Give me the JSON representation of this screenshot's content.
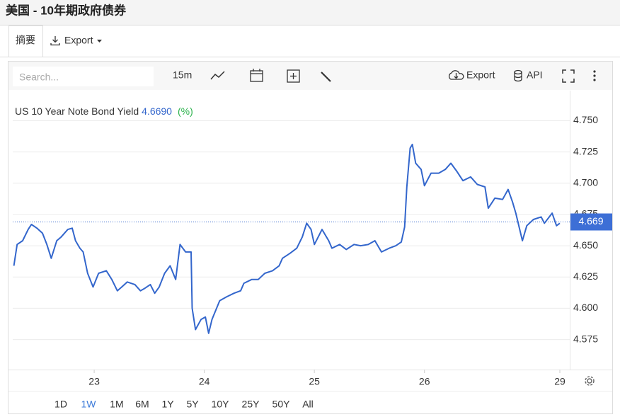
{
  "ui": {
    "title": "美国 - 10年期政府债券",
    "tabs": [
      "摘要",
      "Export"
    ],
    "search_placeholder": "Search...",
    "interval": "15m",
    "export": "Export",
    "api": "API",
    "ranges": [
      "1D",
      "1W",
      "1M",
      "6M",
      "1Y",
      "5Y",
      "10Y",
      "25Y",
      "50Y",
      "All"
    ],
    "active_range": 1
  },
  "chart_data": {
    "type": "line",
    "title": "US 10 Year Note Bond Yield",
    "unit_label": "(%)",
    "color": "#3366cc",
    "current": {
      "value": 4.669,
      "label": "4.669",
      "legend_label": "4.6690"
    },
    "x": [
      -0.73,
      -0.7,
      -0.65,
      -0.6,
      -0.57,
      -0.52,
      -0.47,
      -0.43,
      -0.39,
      -0.34,
      -0.3,
      -0.24,
      -0.2,
      -0.17,
      -0.13,
      -0.1,
      -0.06,
      -0.01,
      0.04,
      0.11,
      0.16,
      0.21,
      0.25,
      0.3,
      0.37,
      0.42,
      0.46,
      0.51,
      0.55,
      0.59,
      0.64,
      0.69,
      0.74,
      0.78,
      0.83,
      0.88,
      0.89,
      0.92,
      0.97,
      1.01,
      1.04,
      1.07,
      1.14,
      1.2,
      1.27,
      1.33,
      1.36,
      1.43,
      1.49,
      1.55,
      1.62,
      1.68,
      1.71,
      1.78,
      1.84,
      1.89,
      1.93,
      1.97,
      2.0,
      2.07,
      2.13,
      2.16,
      2.23,
      2.29,
      2.36,
      2.42,
      2.49,
      2.55,
      2.61,
      2.68,
      2.74,
      2.79,
      2.82,
      2.84,
      2.87,
      2.89,
      2.92,
      2.97,
      3.0,
      3.06,
      3.13,
      3.19,
      3.24,
      3.29,
      3.35,
      3.42,
      3.48,
      3.55,
      3.58,
      3.64,
      3.71,
      3.76,
      3.8,
      3.83,
      3.89,
      3.93,
      3.99,
      4.06,
      4.09,
      4.16,
      4.2,
      4.23
    ],
    "values": [
      4.634,
      4.651,
      4.654,
      4.663,
      4.667,
      4.664,
      4.66,
      4.651,
      4.64,
      4.654,
      4.657,
      4.663,
      4.664,
      4.654,
      4.648,
      4.645,
      4.628,
      4.617,
      4.628,
      4.63,
      4.623,
      4.614,
      4.617,
      4.621,
      4.619,
      4.614,
      4.616,
      4.619,
      4.612,
      4.617,
      4.628,
      4.634,
      4.623,
      4.651,
      4.645,
      4.645,
      4.6,
      4.583,
      4.591,
      4.593,
      4.58,
      4.591,
      4.606,
      4.609,
      4.612,
      4.614,
      4.62,
      4.623,
      4.623,
      4.628,
      4.63,
      4.634,
      4.64,
      4.644,
      4.648,
      4.657,
      4.668,
      4.663,
      4.651,
      4.663,
      4.654,
      4.648,
      4.651,
      4.647,
      4.651,
      4.65,
      4.651,
      4.654,
      4.645,
      4.648,
      4.65,
      4.653,
      4.665,
      4.697,
      4.728,
      4.731,
      4.716,
      4.711,
      4.698,
      4.708,
      4.708,
      4.711,
      4.716,
      4.71,
      4.702,
      4.705,
      4.699,
      4.697,
      4.68,
      4.688,
      4.687,
      4.695,
      4.685,
      4.676,
      4.654,
      4.666,
      4.671,
      4.673,
      4.668,
      4.676,
      4.666,
      4.668
    ],
    "xlim": [
      -0.74,
      4.32
    ],
    "xticks": [
      {
        "value": 0,
        "label": "23"
      },
      {
        "value": 1,
        "label": "24"
      },
      {
        "value": 2,
        "label": "25"
      },
      {
        "value": 3,
        "label": "26"
      },
      {
        "value": 4.23,
        "label": "29"
      }
    ],
    "ylim": [
      4.551,
      4.774
    ],
    "yticks": [
      {
        "value": 4.575,
        "label": "4.575"
      },
      {
        "value": 4.6,
        "label": "4.600"
      },
      {
        "value": 4.625,
        "label": "4.625"
      },
      {
        "value": 4.65,
        "label": "4.650"
      },
      {
        "value": 4.675,
        "label": "4.675"
      },
      {
        "value": 4.7,
        "label": "4.700"
      },
      {
        "value": 4.725,
        "label": "4.725"
      },
      {
        "value": 4.75,
        "label": "4.750"
      }
    ],
    "grid": true
  }
}
